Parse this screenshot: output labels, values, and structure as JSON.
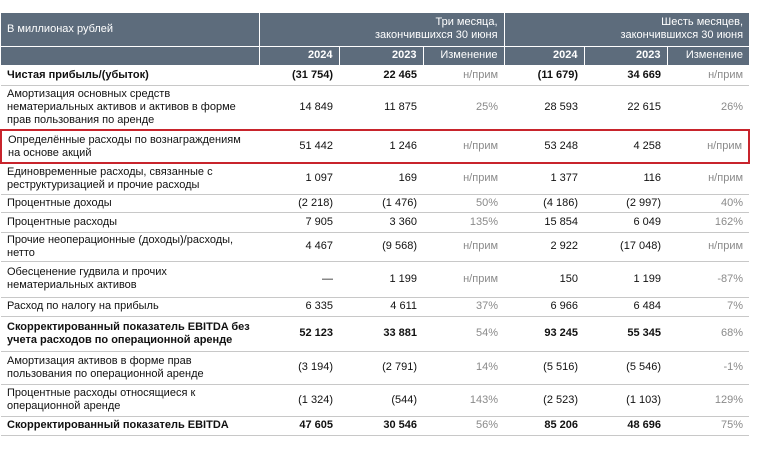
{
  "header": {
    "unit_label": "В миллионах рублей",
    "groups": [
      "Три месяца,\nзакончившихся 30 июня",
      "Шесть месяцев,\nзакончившихся 30 июня"
    ],
    "columns": [
      "2024",
      "2023",
      "Изменение",
      "2024",
      "2023",
      "Изменение"
    ]
  },
  "table": {
    "rows": [
      {
        "label": "Чистая прибыль/(убыток)",
        "bold": true,
        "cells": [
          "(31 754)",
          "22 465",
          "н/прим",
          "(11 679)",
          "34 669",
          "н/прим"
        ]
      },
      {
        "label": "Амортизация основных средств нематериальных активов и активов в форме прав пользования по аренде",
        "cells": [
          "14 849",
          "11 875",
          "25%",
          "28 593",
          "22 615",
          "26%"
        ]
      },
      {
        "label": "Определённые расходы по вознаграждениям на основе акций",
        "highlighted": true,
        "cells": [
          "51 442",
          "1 246",
          "н/прим",
          "53 248",
          "4 258",
          "н/прим"
        ]
      },
      {
        "label": "Единовременные расходы, связанные с реструктуризацией и прочие расходы",
        "cells": [
          "1 097",
          "169",
          "н/прим",
          "1 377",
          "116",
          "н/прим"
        ]
      },
      {
        "label": "Процентные доходы",
        "cells": [
          "(2 218)",
          "(1 476)",
          "50%",
          "(4 186)",
          "(2 997)",
          "40%"
        ]
      },
      {
        "label": "Процентные расходы",
        "cells": [
          "7 905",
          "3 360",
          "135%",
          "15 854",
          "6 049",
          "162%"
        ]
      },
      {
        "label": "Прочие неоперационные (доходы)/расходы, нетто",
        "cells": [
          "4 467",
          "(9 568)",
          "н/прим",
          "2 922",
          "(17 048)",
          "н/прим"
        ]
      },
      {
        "label": "Обесценение гудвила и прочих нематериальных активов",
        "cells": [
          "—",
          "1 199",
          "н/прим",
          "150",
          "1 199",
          "-87%"
        ]
      },
      {
        "label": "Расход по налогу на прибыль",
        "cells": [
          "6 335",
          "4 611",
          "37%",
          "6 966",
          "6 484",
          "7%"
        ]
      },
      {
        "label": "Скорректированный показатель EBITDA без учета расходов по операционной аренде",
        "bold": true,
        "cells": [
          "52 123",
          "33 881",
          "54%",
          "93 245",
          "55 345",
          "68%"
        ]
      },
      {
        "label": "Амортизация активов в форме прав пользования по операционной аренде",
        "cells": [
          "(3 194)",
          "(2 791)",
          "14%",
          "(5 516)",
          "(5 546)",
          "-1%"
        ]
      },
      {
        "label": "Процентные расходы относящиеся к операционной аренде",
        "cells": [
          "(1 324)",
          "(544)",
          "143%",
          "(2 523)",
          "(1 103)",
          "129%"
        ]
      },
      {
        "label": "Скорректированный показатель EBITDA",
        "bold": true,
        "cells": [
          "47 605",
          "30 546",
          "56%",
          "85 206",
          "48 696",
          "75%"
        ]
      }
    ]
  }
}
